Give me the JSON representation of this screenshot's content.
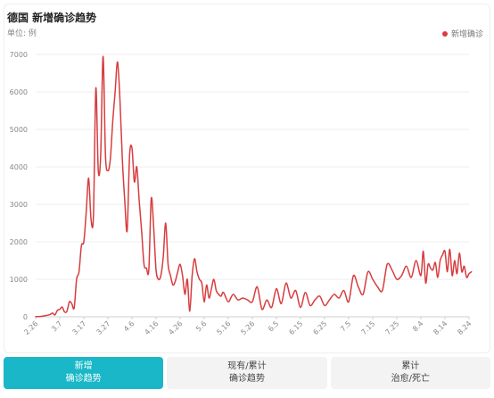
{
  "header": {
    "title": "德国 新增确诊趋势",
    "unit": "单位: 例",
    "legend_label": "新增确诊"
  },
  "colors": {
    "line": "#d73d3f",
    "tab_active": "#19b7c7"
  },
  "tabs": [
    {
      "line1": "新增",
      "line2": "确诊趋势",
      "active": true
    },
    {
      "line1": "现有/累计",
      "line2": "确诊趋势",
      "active": false
    },
    {
      "line1": "累计",
      "line2": "治愈/死亡",
      "active": false
    }
  ],
  "chart_data": {
    "type": "line",
    "ylim": [
      0,
      7000
    ],
    "yticks": [
      0,
      1000,
      2000,
      3000,
      4000,
      5000,
      6000,
      7000
    ],
    "xlim": [
      0,
      180
    ],
    "xticks": [
      {
        "label": "2.26",
        "x": 0
      },
      {
        "label": "3.7",
        "x": 10
      },
      {
        "label": "3.17",
        "x": 20
      },
      {
        "label": "3.27",
        "x": 30
      },
      {
        "label": "4.6",
        "x": 40
      },
      {
        "label": "4.16",
        "x": 50
      },
      {
        "label": "4.26",
        "x": 60
      },
      {
        "label": "5.6",
        "x": 70
      },
      {
        "label": "5.16",
        "x": 80
      },
      {
        "label": "5.26",
        "x": 90
      },
      {
        "label": "6.5",
        "x": 100
      },
      {
        "label": "6.15",
        "x": 110
      },
      {
        "label": "6.25",
        "x": 120
      },
      {
        "label": "7.5",
        "x": 130
      },
      {
        "label": "7.15",
        "x": 140
      },
      {
        "label": "7.25",
        "x": 150
      },
      {
        "label": "8.4",
        "x": 160
      },
      {
        "label": "8.14",
        "x": 170
      },
      {
        "label": "8.24",
        "x": 180
      }
    ],
    "series": [
      {
        "name": "新增确诊",
        "x": [
          0,
          2,
          4,
          6,
          7,
          8,
          9,
          10,
          11,
          12,
          13,
          14,
          15,
          16,
          17,
          18,
          19,
          20,
          21,
          22,
          23,
          24,
          25,
          26,
          27,
          28,
          29,
          30,
          31,
          32,
          33,
          34,
          35,
          36,
          37,
          38,
          39,
          40,
          41,
          42,
          43,
          44,
          45,
          46,
          47,
          48,
          49,
          50,
          51,
          52,
          53,
          54,
          55,
          56,
          57,
          58,
          59,
          60,
          61,
          62,
          63,
          64,
          65,
          66,
          67,
          68,
          69,
          70,
          71,
          72,
          73,
          74,
          75,
          76,
          77,
          78,
          80,
          82,
          84,
          86,
          88,
          90,
          92,
          94,
          96,
          98,
          100,
          102,
          104,
          106,
          108,
          110,
          112,
          114,
          116,
          118,
          120,
          122,
          124,
          126,
          128,
          130,
          132,
          134,
          136,
          138,
          140,
          142,
          144,
          146,
          148,
          150,
          152,
          154,
          156,
          158,
          160,
          161,
          162,
          163,
          164,
          165,
          166,
          167,
          168,
          169,
          170,
          171,
          172,
          173,
          174,
          175,
          176,
          177,
          178,
          179,
          180,
          181
        ],
        "values": [
          5,
          10,
          30,
          60,
          100,
          50,
          170,
          200,
          260,
          130,
          150,
          400,
          350,
          240,
          1000,
          1200,
          1900,
          2000,
          2800,
          3700,
          2600,
          2700,
          6100,
          3900,
          4300,
          6950,
          4300,
          3900,
          4200,
          5200,
          6000,
          6800,
          5800,
          4200,
          3100,
          2300,
          4300,
          4500,
          3600,
          4000,
          3100,
          2300,
          1400,
          1300,
          1250,
          3150,
          2400,
          1250,
          1000,
          1100,
          1600,
          2500,
          1400,
          1100,
          850,
          950,
          1200,
          1400,
          1100,
          600,
          1000,
          150,
          1100,
          1550,
          1200,
          1000,
          900,
          400,
          850,
          500,
          750,
          1000,
          700,
          600,
          550,
          650,
          400,
          600,
          450,
          500,
          450,
          400,
          800,
          200,
          450,
          250,
          750,
          350,
          900,
          500,
          700,
          250,
          650,
          300,
          450,
          550,
          300,
          450,
          600,
          500,
          700,
          400,
          1100,
          800,
          600,
          1200,
          1000,
          800,
          700,
          1400,
          1250,
          1000,
          1100,
          1350,
          1050,
          1500,
          1100,
          1750,
          900,
          1400,
          1300,
          1250,
          1450,
          1050,
          1500,
          1650,
          1750,
          1200,
          1800,
          1100,
          1500,
          1150,
          1700,
          1200,
          1350,
          1050,
          1150,
          1200
        ]
      }
    ]
  }
}
